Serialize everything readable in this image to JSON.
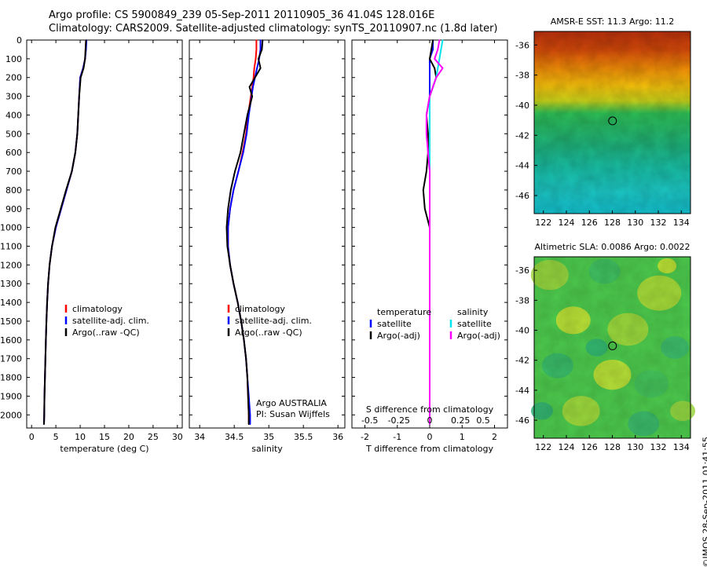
{
  "header": {
    "line1": "Argo profile: CS 5900849_239 05-Sep-2011 20110905_36 41.04S 128.016E",
    "line2": "Climatology: CARS2009. Satellite-adjusted climatology: synTS_20110907.nc (1.8d later)"
  },
  "side_label": "©IMOS 28-Sep-2011 01:41:55",
  "colors": {
    "climatology": "#ff0000",
    "satellite": "#0000ff",
    "argo": "#000000",
    "sal_satellite": "#00e5ee",
    "sal_argo": "#ff00ff"
  },
  "chart_data": [
    {
      "type": "line",
      "id": "temperature",
      "xlabel": "temperature (deg C)",
      "ylabel": "",
      "xlim": [
        -1,
        31
      ],
      "ylim": [
        2070,
        0
      ],
      "xticks": [
        0,
        5,
        10,
        15,
        20,
        25,
        30
      ],
      "yticks": [
        0,
        100,
        200,
        300,
        400,
        500,
        600,
        700,
        800,
        900,
        1000,
        1100,
        1200,
        1300,
        1400,
        1500,
        1600,
        1700,
        1800,
        1900,
        2000
      ],
      "legend": [
        "climatology",
        "satellite-adj. clim.",
        "Argo(..raw -QC)"
      ],
      "depth": [
        0,
        50,
        100,
        150,
        200,
        300,
        400,
        500,
        600,
        700,
        800,
        900,
        1000,
        1100,
        1200,
        1300,
        1400,
        1500,
        1600,
        1700,
        1800,
        1900,
        2000,
        2050
      ],
      "series": [
        {
          "name": "climatology",
          "values": [
            11.2,
            11.1,
            11.0,
            10.6,
            10.0,
            9.8,
            9.6,
            9.4,
            9.0,
            8.3,
            7.2,
            6.1,
            5.0,
            4.2,
            3.7,
            3.4,
            3.2,
            3.05,
            2.95,
            2.85,
            2.75,
            2.65,
            2.6,
            2.55
          ]
        },
        {
          "name": "satellite-adj. clim.",
          "values": [
            11.3,
            11.2,
            11.0,
            10.6,
            10.0,
            9.8,
            9.6,
            9.4,
            9.0,
            8.3,
            7.2,
            6.1,
            5.0,
            4.2,
            3.7,
            3.4,
            3.2,
            3.05,
            2.95,
            2.85,
            2.75,
            2.65,
            2.6,
            2.55
          ]
        },
        {
          "name": "Argo(..raw -QC)",
          "values": [
            11.2,
            11.1,
            11.0,
            10.7,
            10.1,
            9.8,
            9.6,
            9.4,
            9.0,
            8.3,
            7.1,
            6.0,
            4.9,
            4.2,
            3.7,
            3.4,
            3.2,
            3.05,
            2.95,
            2.85,
            2.75,
            2.65,
            2.6,
            2.55
          ]
        }
      ]
    },
    {
      "type": "line",
      "id": "salinity",
      "xlabel": "salinity",
      "ylabel": "",
      "xlim": [
        33.85,
        36.1
      ],
      "ylim": [
        2070,
        0
      ],
      "xticks": [
        34,
        34.5,
        35,
        35.5,
        36
      ],
      "legend": [
        "climatology",
        "satellite-adj. clim.",
        "Argo(..raw -QC)"
      ],
      "annotation": [
        "Argo AUSTRALIA",
        "PI: Susan Wijffels"
      ],
      "depth": [
        0,
        50,
        100,
        150,
        200,
        250,
        300,
        400,
        500,
        600,
        700,
        800,
        900,
        1000,
        1100,
        1200,
        1300,
        1400,
        1500,
        1600,
        1700,
        1800,
        1900,
        2000,
        2050
      ],
      "series": [
        {
          "name": "climatology",
          "values": [
            34.82,
            34.82,
            34.81,
            34.79,
            34.78,
            34.76,
            34.74,
            34.7,
            34.67,
            34.62,
            34.56,
            34.49,
            34.44,
            34.41,
            34.41,
            34.44,
            34.49,
            34.55,
            34.6,
            34.64,
            34.67,
            34.69,
            34.7,
            34.71,
            34.71
          ]
        },
        {
          "name": "satellite-adj. clim.",
          "values": [
            34.88,
            34.88,
            34.86,
            34.83,
            34.8,
            34.77,
            34.75,
            34.71,
            34.68,
            34.63,
            34.56,
            34.49,
            34.44,
            34.41,
            34.41,
            34.44,
            34.49,
            34.55,
            34.6,
            34.64,
            34.67,
            34.69,
            34.71,
            34.73,
            34.73
          ]
        },
        {
          "name": "Argo(..raw -QC)",
          "values": [
            34.91,
            34.9,
            34.85,
            34.88,
            34.8,
            34.72,
            34.76,
            34.69,
            34.64,
            34.59,
            34.51,
            34.45,
            34.41,
            34.39,
            34.4,
            34.44,
            34.49,
            34.55,
            34.6,
            34.64,
            34.67,
            34.69,
            34.7,
            34.71,
            34.71
          ]
        }
      ]
    },
    {
      "type": "line",
      "id": "difference",
      "xlabel": "T difference from climatology",
      "xlabel_top": "S difference from climatology",
      "ylabel": "",
      "xlim": [
        -2.4,
        2.4
      ],
      "ylim": [
        2070,
        0
      ],
      "xticks": [
        -2,
        -1,
        0,
        1,
        2
      ],
      "sticks_labels": [
        "-0.5",
        "-0.25",
        "0",
        "0.25",
        "0.5"
      ],
      "legend_left": {
        "title": "temperature",
        "items": [
          "satellite",
          "Argo(-adj)"
        ]
      },
      "legend_right": {
        "title": "salinity",
        "items": [
          "satellite",
          "Argo(-adj)"
        ]
      },
      "depth": [
        0,
        50,
        100,
        150,
        200,
        250,
        300,
        400,
        500,
        600,
        700,
        800,
        900,
        1000,
        1100,
        1200,
        1300,
        1400,
        1600,
        1800,
        2000,
        2050
      ],
      "series": [
        {
          "name": "temperature satellite",
          "values": [
            0.1,
            0.1,
            0.0,
            0.0,
            0.0,
            0.0,
            0.0,
            0.0,
            0.0,
            0.0,
            0.0,
            0.0,
            0.0,
            0.0,
            0.0,
            0.0,
            0.0,
            0.0,
            0.0,
            0.0,
            0.0,
            0.0
          ]
        },
        {
          "name": "temperature Argo(-adj)",
          "values": [
            0.1,
            0.05,
            0.0,
            0.15,
            0.2,
            0.1,
            0.0,
            -0.1,
            -0.05,
            -0.05,
            -0.1,
            -0.2,
            -0.15,
            0.0,
            0.0,
            0.0,
            0.0,
            0.0,
            0.0,
            0.0,
            0.0,
            0.0
          ]
        },
        {
          "name": "salinity satellite",
          "values": [
            0.4,
            0.35,
            0.3,
            0.25,
            0.2,
            0.1,
            0.0,
            0.0,
            0.0,
            0.0,
            0.0,
            0.0,
            0.0,
            0.0,
            0.0,
            0.0,
            0.0,
            0.0,
            0.0,
            0.0,
            0.0,
            0.0
          ]
        },
        {
          "name": "salinity Argo(-adj)",
          "values": [
            0.3,
            0.25,
            0.15,
            0.4,
            0.2,
            0.1,
            0.0,
            -0.1,
            -0.1,
            -0.05,
            0.0,
            0.0,
            0.0,
            0.0,
            0.0,
            0.0,
            0.0,
            0.0,
            0.0,
            0.0,
            0.0,
            0.0
          ]
        }
      ]
    },
    {
      "type": "heatmap",
      "id": "sst",
      "title": "AMSR-E SST: 11.3 Argo: 11.2",
      "xticks": [
        122,
        124,
        126,
        128,
        130,
        132,
        134
      ],
      "yticks": [
        -36,
        -38,
        -40,
        -42,
        -44,
        -46
      ],
      "xlim": [
        121.2,
        134.8
      ],
      "ylim": [
        -47.2,
        -35.1
      ],
      "marker": {
        "lon": 128.016,
        "lat": -41.04
      }
    },
    {
      "type": "heatmap",
      "id": "sla",
      "title": "Altimetric SLA: 0.0086 Argo: 0.0022",
      "xticks": [
        122,
        124,
        126,
        128,
        130,
        132,
        134
      ],
      "yticks": [
        -36,
        -38,
        -40,
        -42,
        -44,
        -46
      ],
      "xlim": [
        121.2,
        134.8
      ],
      "ylim": [
        -47.2,
        -35.1
      ],
      "marker": {
        "lon": 128.016,
        "lat": -41.04
      }
    }
  ]
}
